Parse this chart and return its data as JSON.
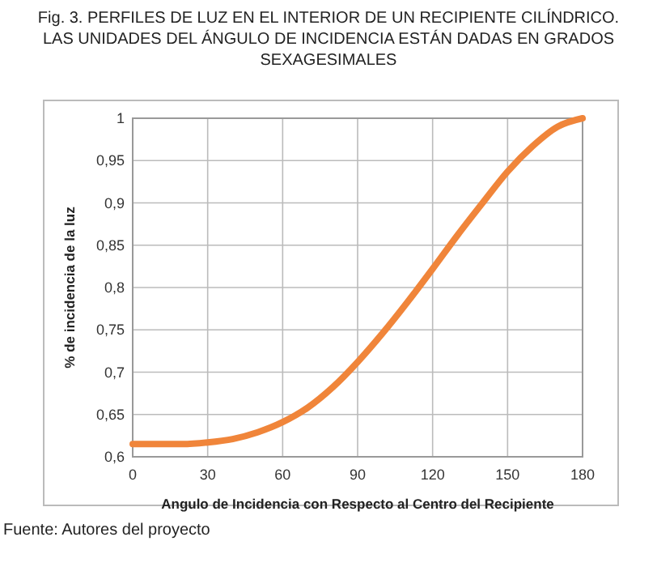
{
  "chart_data": {
    "type": "line",
    "title": "Fig. 3. PERFILES DE LUZ EN EL INTERIOR DE UN RECIPIENTE CILÍNDRICO. LAS UNIDADES DEL ÁNGULO DE INCIDENCIA ESTÁN DADAS EN GRADOS SEXAGESIMALES",
    "xlabel": "Angulo de Incidencia con Respecto al Centro del Recipiente",
    "ylabel": "% de incidencia de la luz",
    "annotations": [
      "Fuente: Autores del proyecto"
    ],
    "x": [
      0,
      10,
      20,
      30,
      40,
      50,
      60,
      70,
      80,
      90,
      100,
      110,
      120,
      130,
      140,
      150,
      160,
      170,
      180
    ],
    "series": [
      {
        "color": "#f0853a",
        "values": [
          0.615,
          0.615,
          0.615,
          0.617,
          0.621,
          0.629,
          0.641,
          0.658,
          0.682,
          0.712,
          0.746,
          0.783,
          0.822,
          0.862,
          0.9,
          0.937,
          0.967,
          0.99,
          1.0
        ]
      }
    ],
    "xlim": [
      0,
      180
    ],
    "xticks": [
      0,
      30,
      60,
      90,
      120,
      150,
      180
    ],
    "ylim": [
      0.6,
      1
    ],
    "yticks": [
      {
        "value": 0.6,
        "label": "0,6"
      },
      {
        "value": 0.65,
        "label": "0,65"
      },
      {
        "value": 0.7,
        "label": "0,7"
      },
      {
        "value": 0.75,
        "label": "0,75"
      },
      {
        "value": 0.8,
        "label": "0,8"
      },
      {
        "value": 0.85,
        "label": "0,85"
      },
      {
        "value": 0.9,
        "label": "0,9"
      },
      {
        "value": 0.95,
        "label": "0,95"
      },
      {
        "value": 1,
        "label": "1"
      }
    ],
    "grid": true,
    "marker": "none",
    "line_style": "solid"
  }
}
